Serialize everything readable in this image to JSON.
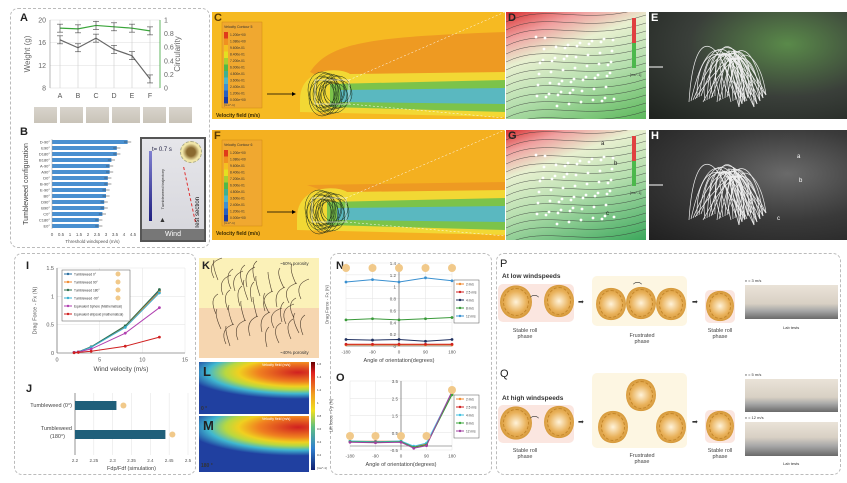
{
  "panels": {
    "A": "A",
    "B": "B",
    "C": "C",
    "D": "D",
    "E": "E",
    "F": "F",
    "G": "G",
    "H": "H",
    "I": "I",
    "J": "J",
    "K": "K",
    "L": "L",
    "M": "M",
    "N": "N",
    "O": "O",
    "P": "P",
    "Q": "Q"
  },
  "colors": {
    "gray_series": "#666666",
    "green_series": "#3aa53a",
    "bar_blue": "#4a90d0",
    "bar_teal": "#1f5f7a",
    "cfd_orange": "#f0a020",
    "cfd_yellow": "#f7c520"
  },
  "chart_data": [
    {
      "id": "A",
      "type": "line",
      "categories": [
        "A",
        "B",
        "C",
        "D",
        "E",
        "F"
      ],
      "series": [
        {
          "axis": "left",
          "color": "#666666",
          "values": [
            16.5,
            15.1,
            16.8,
            14.8,
            13.7,
            9.6
          ]
        },
        {
          "axis": "right",
          "color": "#3aa53a",
          "values": [
            0.88,
            0.87,
            0.92,
            0.9,
            0.88,
            0.84
          ]
        }
      ],
      "ylabel": "Weight (g)",
      "ylim": [
        8,
        20
      ],
      "yticks": [
        "8",
        "12",
        "16",
        "20"
      ],
      "y2label": "Circularity",
      "y2lim": [
        0,
        1
      ],
      "y2ticks": [
        "0",
        "0.2",
        "0.4",
        "0.6",
        "0.8",
        "1"
      ],
      "grid": true
    },
    {
      "id": "B",
      "type": "bar",
      "orientation": "horizontal",
      "categories": [
        "D-90°",
        "E90°",
        "D180°",
        "B180°",
        "A-90°",
        "A90°",
        "D0°",
        "B-90°",
        "E-90°",
        "B0°",
        "D90°",
        "B90°",
        "C0°",
        "C180°",
        "E0°"
      ],
      "values": [
        4.2,
        3.6,
        3.6,
        3.3,
        3.2,
        3.2,
        3.1,
        3.1,
        3.0,
        3.0,
        2.9,
        2.9,
        2.8,
        2.6,
        2.6
      ],
      "xlabel": "Threshold windspeed (m/s)",
      "ylabel": "Tumbleweed configuration",
      "xlim": [
        0,
        4.5
      ],
      "xticks": [
        "0",
        "0.5",
        "1",
        "1.5",
        "2",
        "2.5",
        "3",
        "3.5",
        "4",
        "4.5"
      ]
    },
    {
      "id": "I",
      "type": "line",
      "x": [
        2,
        2.5,
        4,
        8,
        12
      ],
      "xlabel": "Wind velocity (m/s)",
      "ylabel": "Drag Force - Fx (N)",
      "xlim": [
        0,
        15
      ],
      "ylim": [
        0,
        1.5
      ],
      "xticks": [
        "0",
        "5",
        "10",
        "15"
      ],
      "yticks": [
        "0",
        "0.5",
        "1",
        "1.5"
      ],
      "legend": "top-left",
      "grid": true,
      "series": [
        {
          "name": "Tumbleweed 0°",
          "color": "#2a6fa0",
          "values": [
            0.01,
            0.02,
            0.1,
            0.46,
            1.1
          ]
        },
        {
          "name": "Tumbleweed 90°",
          "color": "#f08a30",
          "values": [
            0.01,
            0.02,
            0.1,
            0.47,
            1.08
          ]
        },
        {
          "name": "Tumbleweed 180°",
          "color": "#2f6f4f",
          "values": [
            0.01,
            0.02,
            0.11,
            0.48,
            1.12
          ]
        },
        {
          "name": "Tumbleweed -90°",
          "color": "#3ab0d0",
          "values": [
            0.01,
            0.02,
            0.1,
            0.45,
            1.06
          ]
        },
        {
          "name": "Equivalent Sphere (Mathematical)",
          "color": "#b040b0",
          "values": [
            0.01,
            0.02,
            0.07,
            0.35,
            0.8
          ]
        },
        {
          "name": "Equivalent ellipsoid (mathematical)",
          "color": "#d02020",
          "values": [
            0.005,
            0.01,
            0.03,
            0.12,
            0.28
          ]
        }
      ]
    },
    {
      "id": "J",
      "type": "bar",
      "orientation": "horizontal",
      "categories": [
        "Tumbleweed (0°)",
        "Tumbleweed (180°)"
      ],
      "values": [
        2.31,
        2.44
      ],
      "xlabel": "Fdp/Fdf (simulation)",
      "xlim": [
        2.2,
        2.5
      ],
      "xticks": [
        "2.2",
        "2.25",
        "2.3",
        "2.35",
        "2.4",
        "2.45",
        "2.5"
      ]
    },
    {
      "id": "N",
      "type": "line",
      "x": [
        -180,
        -90,
        0,
        90,
        180
      ],
      "xlabel": "Angle of orientation(degrees)",
      "ylabel": "Drag Force - Fx (N)",
      "xlim": [
        -180,
        180
      ],
      "ylim": [
        0,
        1.4
      ],
      "xticks": [
        "-180",
        "-90",
        "0",
        "90",
        "180"
      ],
      "yticks": [
        "0",
        "0.2",
        "0.4",
        "0.6",
        "0.8",
        "1",
        "1.2",
        "1.4"
      ],
      "legend": "right",
      "series": [
        {
          "name": "2 m/s",
          "color": "#f08a30",
          "values": [
            0.02,
            0.02,
            0.02,
            0.02,
            0.02
          ]
        },
        {
          "name": "2.5 m/s",
          "color": "#d02020",
          "values": [
            0.03,
            0.03,
            0.03,
            0.03,
            0.03
          ]
        },
        {
          "name": "4 m/s",
          "color": "#1f2f5f",
          "values": [
            0.11,
            0.1,
            0.11,
            0.08,
            0.11
          ]
        },
        {
          "name": "8 m/s",
          "color": "#3a9a3a",
          "values": [
            0.44,
            0.46,
            0.44,
            0.46,
            0.48
          ]
        },
        {
          "name": "12 m/s",
          "color": "#3a90d0",
          "values": [
            1.08,
            1.12,
            1.08,
            1.15,
            1.1
          ]
        }
      ]
    },
    {
      "id": "O",
      "type": "line",
      "x": [
        -180,
        -90,
        0,
        45,
        90,
        180
      ],
      "xlabel": "Angle of orientation(degrees)",
      "ylabel": "Lift force - Fy (N)",
      "xlim": [
        -180,
        180
      ],
      "ylim": [
        -0.5,
        3.5
      ],
      "xticks": [
        "-180",
        "-90",
        "0",
        "90",
        "180"
      ],
      "yticks": [
        "-0.5",
        "0.5",
        "1.5",
        "2.5",
        "3.5"
      ],
      "legend": "right",
      "series": [
        {
          "name": "2 m/s",
          "color": "#f08a30",
          "values": [
            0,
            0,
            0,
            -0.3,
            -0.15,
            2.75
          ]
        },
        {
          "name": "2.5 m/s",
          "color": "#d02020",
          "values": [
            0,
            0,
            0,
            -0.32,
            -0.2,
            2.8
          ]
        },
        {
          "name": "4 m/s",
          "color": "#40c0e0",
          "values": [
            0.02,
            -0.02,
            0.02,
            -0.28,
            -0.1,
            2.85
          ]
        },
        {
          "name": "8 m/s",
          "color": "#3aa53a",
          "values": [
            -0.02,
            -0.05,
            -0.02,
            -0.35,
            -0.2,
            2.7
          ]
        },
        {
          "name": "12 m/s",
          "color": "#a040a0",
          "values": [
            -0.05,
            -0.08,
            -0.05,
            -0.4,
            -0.25,
            2.9
          ]
        }
      ]
    }
  ],
  "cfd": {
    "legend_title_C": "Velocity Contour 5",
    "legend_title_F": "Velocity Contour 6",
    "legend_values": [
      "1.200e+00",
      "1.080e+00",
      "9.600e-01",
      "8.400e-01",
      "7.200e-01",
      "6.000e-01",
      "4.800e-01",
      "3.600e-01",
      "2.400e-01",
      "1.200e-01",
      "0.000e+00"
    ],
    "legend_colors": [
      "#e03a1a",
      "#f09020",
      "#f4c020",
      "#e4e020",
      "#a8d030",
      "#50b848",
      "#40b090",
      "#50b8c8",
      "#4090d0",
      "#2860c0",
      "#1a3aa0"
    ],
    "unit": "[m s^-1]",
    "field_label": "Velocity field (m/s)",
    "D_unit": "[ms^-1]",
    "G_unit": "[ms^-1]",
    "flow_labels": [
      "a",
      "b",
      "c"
    ]
  },
  "wind_photo": {
    "time": "t= 0.7 s",
    "trajectory": "Tumbleweed trajectory",
    "section": "Test section",
    "wind": "Wind"
  },
  "K": {
    "top": "~60% porosity",
    "bottom": "~40% porosity"
  },
  "LM": {
    "field": "Velocity field (m/s)",
    "L_angle": "0 °",
    "M_angle": "180 °",
    "scale": [
      "1.6",
      "1.4",
      "1.2",
      "1",
      "0.8",
      "0.6",
      "0.4",
      "0.2"
    ],
    "unit": "[ms^-1]"
  },
  "P": {
    "title": "At low windspeeds",
    "stable1": "Stable roll phase",
    "frustrated": "Frustrated phase",
    "stable2": "Stable roll phase",
    "speed": "v = 3 m/s",
    "lab": "Lab tests"
  },
  "Q": {
    "title": "At high windspeeds",
    "stable1": "Stable roll phase",
    "frustrated": "Frustrated phase",
    "stable2": "Stable roll phase",
    "speed1": "v = 5 m/s",
    "speed2": "v = 12 m/s",
    "lab": "Lab tests"
  }
}
